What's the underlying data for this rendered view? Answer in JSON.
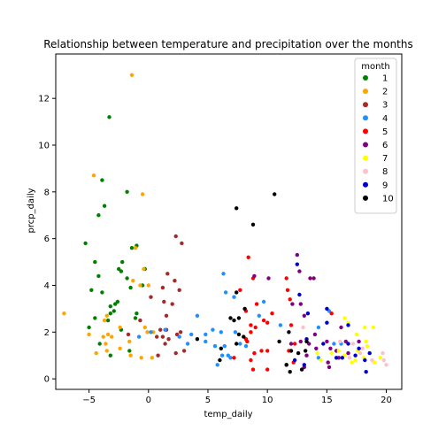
{
  "chart_data": {
    "type": "scatter",
    "title": "Relationship between temperature and precipitation over the months",
    "xlabel": "temp_daily",
    "ylabel": "prcp_daily",
    "xlim": [
      -7.8,
      21.3
    ],
    "ylim": [
      -0.45,
      13.9
    ],
    "xticks": [
      -5,
      0,
      5,
      10,
      15,
      20
    ],
    "yticks": [
      0,
      2,
      4,
      6,
      8,
      10,
      12
    ],
    "grid": false,
    "legend": {
      "title": "month",
      "placement": "top-right"
    },
    "series": [
      {
        "name": "1",
        "color": "#008000",
        "points": [
          [
            -3.3,
            11.2
          ],
          [
            -3.9,
            8.5
          ],
          [
            -1.8,
            8.0
          ],
          [
            -4.2,
            7.0
          ],
          [
            -3.7,
            7.4
          ],
          [
            -5.3,
            5.8
          ],
          [
            -1.0,
            5.7
          ],
          [
            -1.4,
            5.6
          ],
          [
            -4.5,
            5.0
          ],
          [
            -2.2,
            5.0
          ],
          [
            -2.5,
            4.7
          ],
          [
            -2.3,
            4.6
          ],
          [
            -0.3,
            4.7
          ],
          [
            -4.2,
            4.4
          ],
          [
            -1.8,
            4.3
          ],
          [
            -0.5,
            4.0
          ],
          [
            -1.5,
            3.9
          ],
          [
            -4.8,
            3.8
          ],
          [
            -3.9,
            3.7
          ],
          [
            -2.6,
            3.3
          ],
          [
            -2.8,
            3.2
          ],
          [
            -3.2,
            3.1
          ],
          [
            -2.9,
            2.9
          ],
          [
            -3.2,
            2.8
          ],
          [
            -1.0,
            2.8
          ],
          [
            -1.1,
            2.6
          ],
          [
            -4.5,
            2.6
          ],
          [
            -3.4,
            2.5
          ],
          [
            -2.3,
            2.1
          ],
          [
            -5.0,
            2.2
          ],
          [
            -4.1,
            1.5
          ],
          [
            -3.2,
            1.0
          ],
          [
            -1.6,
            1.2
          ]
        ]
      },
      {
        "name": "2",
        "color": "#FFA500",
        "points": [
          [
            -1.4,
            13.0
          ],
          [
            -4.6,
            8.7
          ],
          [
            -0.5,
            7.9
          ],
          [
            -1.1,
            5.6
          ],
          [
            -0.4,
            4.7
          ],
          [
            -1.3,
            4.2
          ],
          [
            -0.7,
            4.0
          ],
          [
            0.0,
            4.0
          ],
          [
            -3.5,
            2.7
          ],
          [
            -7.1,
            2.8
          ],
          [
            -3.7,
            2.5
          ],
          [
            -2.4,
            2.2
          ],
          [
            -0.3,
            2.2
          ],
          [
            -3.4,
            1.9
          ],
          [
            -3.1,
            1.8
          ],
          [
            -5.0,
            1.9
          ],
          [
            -3.8,
            1.8
          ],
          [
            -1.6,
            1.6
          ],
          [
            -0.1,
            2.0
          ],
          [
            0.4,
            2.0
          ],
          [
            -3.6,
            1.5
          ],
          [
            -2.4,
            1.3
          ],
          [
            -3.5,
            1.2
          ],
          [
            -1.5,
            1.0
          ],
          [
            -4.4,
            1.1
          ],
          [
            -0.6,
            0.9
          ],
          [
            0.3,
            0.9
          ]
        ]
      },
      {
        "name": "3",
        "color": "#A52A2A",
        "points": [
          [
            2.3,
            6.1
          ],
          [
            2.8,
            5.8
          ],
          [
            1.6,
            4.5
          ],
          [
            2.2,
            4.2
          ],
          [
            1.2,
            3.9
          ],
          [
            2.6,
            3.8
          ],
          [
            1.3,
            3.3
          ],
          [
            0.2,
            3.5
          ],
          [
            2.0,
            3.2
          ],
          [
            1.5,
            2.7
          ],
          [
            -0.7,
            2.5
          ],
          [
            0.7,
            1.8
          ],
          [
            1.5,
            2.1
          ],
          [
            1.0,
            2.1
          ],
          [
            1.2,
            1.8
          ],
          [
            2.4,
            1.9
          ],
          [
            1.7,
            1.7
          ],
          [
            1.4,
            1.5
          ],
          [
            0.8,
            1.0
          ],
          [
            2.3,
            1.1
          ],
          [
            3.0,
            1.2
          ],
          [
            2.7,
            2.0
          ],
          [
            -1.7,
            1.9
          ]
        ]
      },
      {
        "name": "4",
        "color": "#1E90FF",
        "points": [
          [
            6.3,
            4.5
          ],
          [
            6.5,
            3.7
          ],
          [
            7.2,
            3.5
          ],
          [
            9.7,
            3.3
          ],
          [
            4.1,
            2.7
          ],
          [
            6.1,
            2.0
          ],
          [
            7.3,
            2.0
          ],
          [
            3.6,
            1.9
          ],
          [
            4.8,
            1.9
          ],
          [
            5.4,
            2.1
          ],
          [
            2.6,
            1.8
          ],
          [
            3.3,
            1.5
          ],
          [
            4.8,
            1.6
          ],
          [
            6.4,
            1.4
          ],
          [
            5.6,
            1.4
          ],
          [
            7.7,
            1.5
          ],
          [
            8.2,
            1.4
          ],
          [
            6.7,
            1.0
          ],
          [
            6.9,
            0.9
          ],
          [
            5.8,
            0.6
          ],
          [
            6.2,
            1.0
          ],
          [
            11.1,
            2.3
          ],
          [
            9.3,
            2.7
          ],
          [
            14.3,
            2.2
          ],
          [
            15.2,
            2.9
          ],
          [
            15.6,
            1.5
          ],
          [
            16.2,
            1.5
          ],
          [
            14.3,
            0.9
          ],
          [
            1.4,
            2.1
          ],
          [
            -0.8,
            1.8
          ],
          [
            0.2,
            2.0
          ]
        ]
      },
      {
        "name": "5",
        "color": "#FF0000",
        "points": [
          [
            8.4,
            5.2
          ],
          [
            11.6,
            4.3
          ],
          [
            8.8,
            4.3
          ],
          [
            7.7,
            3.8
          ],
          [
            11.9,
            3.4
          ],
          [
            11.7,
            3.8
          ],
          [
            9.1,
            3.2
          ],
          [
            10.4,
            2.8
          ],
          [
            9.7,
            2.5
          ],
          [
            8.2,
            2.9
          ],
          [
            10.0,
            2.4
          ],
          [
            8.6,
            2.3
          ],
          [
            8.6,
            2.0
          ],
          [
            8.2,
            1.7
          ],
          [
            9.0,
            2.2
          ],
          [
            8.3,
            1.6
          ],
          [
            9.5,
            1.2
          ],
          [
            10.0,
            1.2
          ],
          [
            8.9,
            1.1
          ],
          [
            8.6,
            0.8
          ],
          [
            7.2,
            0.9
          ],
          [
            8.8,
            0.4
          ],
          [
            10.0,
            0.4
          ],
          [
            12.0,
            2.3
          ],
          [
            15.4,
            2.8
          ],
          [
            12.3,
            1.5
          ],
          [
            11.8,
            1.2
          ],
          [
            12.2,
            0.7
          ]
        ]
      },
      {
        "name": "6",
        "color": "#800080",
        "points": [
          [
            12.5,
            5.3
          ],
          [
            12.7,
            4.6
          ],
          [
            13.6,
            4.3
          ],
          [
            13.9,
            4.3
          ],
          [
            10.1,
            4.3
          ],
          [
            8.9,
            4.4
          ],
          [
            12.1,
            3.2
          ],
          [
            12.8,
            3.2
          ],
          [
            13.1,
            2.7
          ],
          [
            14.0,
            1.9
          ],
          [
            12.8,
            1.6
          ],
          [
            13.5,
            1.5
          ],
          [
            14.1,
            1.3
          ],
          [
            15.3,
            1.3
          ],
          [
            15.8,
            1.2
          ],
          [
            16.6,
            1.6
          ],
          [
            16.0,
            0.9
          ],
          [
            15.1,
            0.7
          ],
          [
            15.2,
            0.5
          ],
          [
            13.3,
            1.0
          ],
          [
            13.1,
            0.5
          ],
          [
            17.7,
            1.6
          ],
          [
            16.2,
            2.2
          ],
          [
            12.0,
            1.5
          ],
          [
            15.0,
            1.6
          ],
          [
            16.8,
            1.1
          ]
        ]
      },
      {
        "name": "7",
        "color": "#FFFF00",
        "points": [
          [
            16.5,
            2.6
          ],
          [
            16.8,
            2.4
          ],
          [
            18.2,
            2.2
          ],
          [
            18.9,
            2.2
          ],
          [
            17.5,
            1.9
          ],
          [
            18.3,
            1.6
          ],
          [
            18.4,
            1.4
          ],
          [
            17.6,
            1.2
          ],
          [
            16.5,
            1.0
          ],
          [
            16.0,
            1.2
          ],
          [
            17.4,
            0.8
          ],
          [
            18.1,
            0.9
          ],
          [
            19.5,
            0.9
          ],
          [
            19.0,
            0.7
          ],
          [
            17.1,
            0.7
          ],
          [
            14.5,
            0.8
          ],
          [
            14.2,
            1.1
          ],
          [
            15.4,
            1.1
          ]
        ]
      },
      {
        "name": "8",
        "color": "#FFC0CB",
        "points": [
          [
            13.0,
            2.2
          ],
          [
            16.1,
            1.6
          ],
          [
            17.2,
            1.5
          ],
          [
            18.0,
            1.3
          ],
          [
            19.7,
            1.1
          ],
          [
            18.8,
            0.8
          ],
          [
            19.8,
            0.8
          ],
          [
            20.0,
            0.6
          ],
          [
            17.8,
            1.1
          ],
          [
            16.9,
            0.9
          ]
        ]
      },
      {
        "name": "9",
        "color": "#0000CD",
        "points": [
          [
            12.5,
            4.9
          ],
          [
            12.7,
            3.6
          ],
          [
            15.0,
            3.0
          ],
          [
            16.8,
            2.3
          ],
          [
            13.4,
            2.8
          ],
          [
            15.0,
            2.4
          ],
          [
            17.7,
            1.3
          ],
          [
            17.4,
            1.0
          ],
          [
            18.6,
            1.1
          ],
          [
            18.2,
            0.8
          ],
          [
            18.3,
            0.3
          ],
          [
            16.3,
            0.9
          ],
          [
            16.8,
            1.5
          ],
          [
            13.3,
            1.7
          ],
          [
            14.7,
            1.5
          ],
          [
            15.8,
            0.9
          ],
          [
            12.3,
            0.8
          ],
          [
            13.1,
            0.6
          ]
        ]
      },
      {
        "name": "10",
        "color": "#000000",
        "points": [
          [
            10.6,
            7.9
          ],
          [
            7.4,
            7.3
          ],
          [
            8.8,
            6.6
          ],
          [
            7.4,
            3.7
          ],
          [
            8.1,
            3.0
          ],
          [
            6.9,
            2.6
          ],
          [
            7.6,
            2.6
          ],
          [
            7.2,
            2.5
          ],
          [
            7.6,
            1.9
          ],
          [
            6.1,
            1.3
          ],
          [
            8.0,
            1.8
          ],
          [
            7.4,
            1.5
          ],
          [
            6.0,
            0.8
          ],
          [
            11.0,
            1.6
          ],
          [
            11.8,
            2.0
          ],
          [
            12.0,
            1.2
          ],
          [
            11.6,
            0.6
          ],
          [
            12.6,
            1.1
          ],
          [
            11.6,
            0.6
          ],
          [
            12.9,
            0.4
          ],
          [
            11.9,
            0.3
          ],
          [
            13.2,
            1.2
          ],
          [
            13.3,
            1.6
          ],
          [
            4.1,
            1.7
          ]
        ]
      }
    ]
  }
}
